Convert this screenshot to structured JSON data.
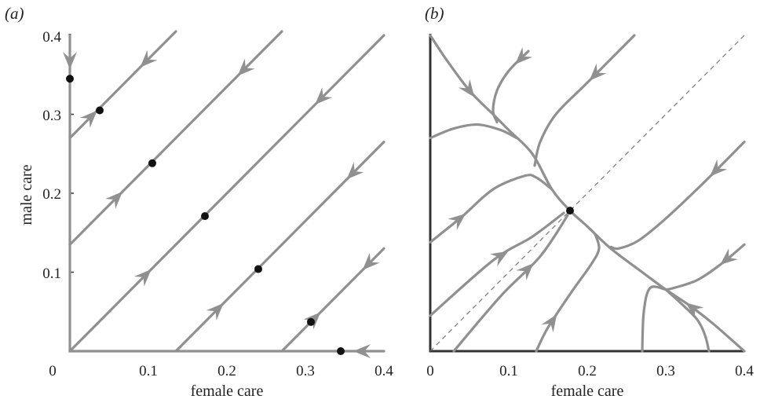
{
  "chart_data": [
    {
      "panel": "(a)",
      "type": "line",
      "xlabel": "female care",
      "ylabel": "male care",
      "xlim": [
        0,
        0.4
      ],
      "ylim": [
        0,
        0.4
      ],
      "xticks": [
        "0",
        "0.1",
        "0.2",
        "0.3",
        "0.4"
      ],
      "yticks": [
        "0.1",
        "0.2",
        "0.3",
        "0.4"
      ],
      "origin_label": "0",
      "series": [
        {
          "x": [
            0,
            0.135
          ],
          "y": [
            0.27,
            0.405
          ],
          "arrows": [
            {
              "t": 0.2,
              "dir": 1
            },
            {
              "t": 0.72,
              "dir": -1
            }
          ]
        },
        {
          "x": [
            0,
            0.27
          ],
          "y": [
            0.135,
            0.405
          ],
          "arrows": [
            {
              "t": 0.22,
              "dir": 1
            },
            {
              "t": 0.82,
              "dir": -1
            }
          ]
        },
        {
          "x": [
            0,
            0.4
          ],
          "y": [
            0,
            0.4
          ],
          "arrows": [
            {
              "t": 0.24,
              "dir": 1
            },
            {
              "t": 0.8,
              "dir": -1
            }
          ]
        },
        {
          "x": [
            0.135,
            0.4
          ],
          "y": [
            0,
            0.265
          ],
          "arrows": [
            {
              "t": 0.2,
              "dir": 1
            },
            {
              "t": 0.85,
              "dir": -1
            }
          ]
        },
        {
          "x": [
            0.27,
            0.4
          ],
          "y": [
            0,
            0.13
          ],
          "arrows": [
            {
              "t": 0.32,
              "dir": 1
            },
            {
              "t": 0.85,
              "dir": -1
            }
          ]
        },
        {
          "x": [
            0,
            0
          ],
          "y": [
            0,
            0.4
          ],
          "arrows": [
            {
              "t": 0.92,
              "dir": -1
            }
          ]
        },
        {
          "x": [
            0,
            0.4
          ],
          "y": [
            0,
            0
          ],
          "arrows": [
            {
              "t": 0.93,
              "dir": -1
            }
          ]
        }
      ],
      "equilibria": [
        {
          "x": 0,
          "y": 0.345
        },
        {
          "x": 0.038,
          "y": 0.305
        },
        {
          "x": 0.105,
          "y": 0.238
        },
        {
          "x": 0.172,
          "y": 0.171
        },
        {
          "x": 0.24,
          "y": 0.104
        },
        {
          "x": 0.307,
          "y": 0.037
        },
        {
          "x": 0.345,
          "y": 0
        }
      ],
      "diagonal": "solid"
    },
    {
      "panel": "(b)",
      "type": "line",
      "xlabel": "female care",
      "ylabel": "",
      "xlim": [
        0,
        0.4
      ],
      "ylim": [
        0,
        0.4
      ],
      "xticks": [
        "0",
        "0.1",
        "0.2",
        "0.3",
        "0.4"
      ],
      "yticks": [],
      "series": [
        {
          "x": [
            0.0,
            0.03,
            0.06,
            0.09,
            0.12,
            0.15,
            0.18,
            0.21,
            0.24,
            0.27,
            0.3,
            0.33,
            0.36,
            0.38,
            0.4
          ],
          "y": [
            0.4,
            0.36,
            0.32,
            0.289,
            0.26,
            0.232,
            0.178,
            0.148,
            0.118,
            0.09,
            0.072,
            0.052,
            0.028,
            0.013,
            0.0
          ],
          "arrows": [
            {
              "t": 0.18,
              "dir": 1
            },
            {
              "t": 0.82,
              "dir": -1
            }
          ]
        },
        {
          "x": [
            0.0,
            0.04,
            0.08,
            0.12,
            0.145
          ],
          "y": [
            0.268,
            0.285,
            0.283,
            0.264,
            0.25
          ],
          "arrows": []
        },
        {
          "x": [
            0.177,
            0.105,
            0.085,
            0.083,
            0.092,
            0.105,
            0.12
          ],
          "y": [
            0.335,
            0.34,
            0.33,
            0.31,
            0.295,
            0.3,
            0.4
          ],
          "arrows": []
        },
        {
          "x": [
            0.0,
            0.06,
            0.11,
            0.13,
            0.178
          ],
          "y": [
            0.138,
            0.19,
            0.215,
            0.22,
            0.178
          ],
          "arrows": [
            {
              "t": 0.2,
              "dir": 1
            }
          ]
        }
      ],
      "equilibria": [
        {
          "x": 0.178,
          "y": 0.178
        }
      ],
      "diagonal": "dashed"
    }
  ]
}
